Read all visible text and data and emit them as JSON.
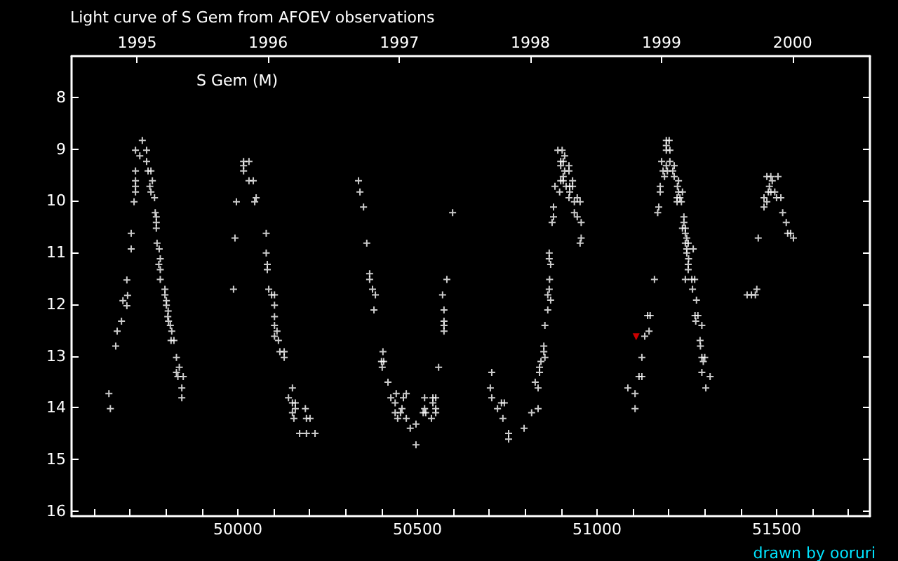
{
  "chart_data": {
    "type": "scatter",
    "title": "Light curve of S Gem from AFOEV observations",
    "annotations": [
      "S Gem (M)",
      "drawn by ooruri"
    ],
    "xlim": [
      49537,
      51760
    ],
    "xticks": [
      {
        "value": 49600,
        "label": null
      },
      {
        "value": 49700,
        "label": null
      },
      {
        "value": 49800,
        "label": null
      },
      {
        "value": 49900,
        "label": null
      },
      50000,
      {
        "value": 50100,
        "label": null
      },
      {
        "value": 50200,
        "label": null
      },
      {
        "value": 50300,
        "label": null
      },
      {
        "value": 50400,
        "label": null
      },
      50500,
      {
        "value": 50600,
        "label": null
      },
      {
        "value": 50700,
        "label": null
      },
      {
        "value": 50800,
        "label": null
      },
      {
        "value": 50900,
        "label": null
      },
      51000,
      {
        "value": 51100,
        "label": null
      },
      {
        "value": 51200,
        "label": null
      },
      {
        "value": 51300,
        "label": null
      },
      {
        "value": 51400,
        "label": null
      },
      51500,
      {
        "value": 51600,
        "label": null
      },
      {
        "value": 51700,
        "label": null
      }
    ],
    "x2lim": [
      1994.5,
      2000.59
    ],
    "x2ticks": [
      1995,
      1996,
      1997,
      1998,
      1999,
      2000
    ],
    "ylim": [
      16.1,
      7.2
    ],
    "yticks": [
      8,
      9,
      10,
      11,
      12,
      13,
      14,
      15,
      16
    ],
    "grid": false,
    "series": [
      {
        "color": "#ffffff",
        "marker": "cross",
        "x": [
          49641,
          49645,
          49660,
          49664,
          49676,
          49680,
          49691,
          49693,
          49691,
          49703,
          49703,
          49711,
          49715,
          49715,
          49715,
          49715,
          49715,
          49727,
          49734,
          49746,
          49746,
          49750,
          49758,
          49755,
          49758,
          49762,
          49768,
          49770,
          49773,
          49773,
          49773,
          49775,
          49781,
          49784,
          49780,
          49784,
          49784,
          49797,
          49797,
          49801,
          49801,
          49806,
          49805,
          49807,
          49812,
          49816,
          49814,
          49822,
          49829,
          49837,
          49829,
          49833,
          49848,
          49844,
          49844,
          49988,
          49992,
          49996,
          50016,
          50016,
          50016,
          50031,
          50031,
          50043,
          50047,
          50051,
          50079,
          50079,
          50082,
          50082,
          50086,
          50094,
          50102,
          50102,
          50102,
          50102,
          50109,
          50102,
          50113,
          50117,
          50129,
          50129,
          50152,
          50141,
          50152,
          50160,
          50152,
          50156,
          50160,
          50188,
          50191,
          50201,
          50172,
          50191,
          50215,
          50336,
          50340,
          50350,
          50359,
          50367,
          50367,
          50375,
          50383,
          50379,
          50404,
          50400,
          50406,
          50402,
          50418,
          50426,
          50441,
          50438,
          50461,
          50469,
          50457,
          50453,
          50438,
          50445,
          50469,
          50480,
          50496,
          50496,
          50520,
          50520,
          50516,
          50523,
          50543,
          50551,
          50543,
          50551,
          50551,
          50539,
          50559,
          50574,
          50574,
          50574,
          50574,
          50570,
          50582,
          50598,
          50707,
          50703,
          50707,
          50723,
          50734,
          50742,
          50738,
          50754,
          50754,
          50797,
          50818,
          50836,
          50828,
          50836,
          50840,
          50840,
          50844,
          50852,
          50852,
          50855,
          50855,
          50863,
          50871,
          50863,
          50867,
          50868,
          50871,
          50867,
          50867,
          50875,
          50879,
          50879,
          50883,
          50896,
          50891,
          50903,
          50910,
          50899,
          50899,
          50906,
          50910,
          50922,
          50922,
          50906,
          50899,
          50906,
          50914,
          50924,
          50932,
          50932,
          50924,
          50922,
          50945,
          50937,
          50953,
          50937,
          50945,
          50956,
          50956,
          50953,
          51086,
          51106,
          51106,
          51117,
          51125,
          51125,
          51133,
          51145,
          51141,
          51148,
          51160,
          51169,
          51172,
          51176,
          51176,
          51180,
          51184,
          51188,
          51193,
          51193,
          51193,
          51201,
          51193,
          51203,
          51196,
          51203,
          51211,
          51215,
          51215,
          51227,
          51224,
          51227,
          51238,
          51223,
          51231,
          51223,
          51235,
          51242,
          51242,
          51238,
          51246,
          51246,
          51250,
          51246,
          51254,
          51250,
          51268,
          51250,
          51255,
          51254,
          51254,
          51246,
          51264,
          51272,
          51266,
          51277,
          51273,
          51281,
          51275,
          51292,
          51287,
          51288,
          51292,
          51300,
          51296,
          51292,
          51315,
          51303,
          51418,
          51430,
          51441,
          51445,
          51449,
          51465,
          51465,
          51473,
          51477,
          51484,
          51495,
          51480,
          51488,
          51473,
          51484,
          51504,
          51500,
          51512,
          51517,
          51527,
          51531,
          51539,
          51547
        ],
        "values": [
          13.73,
          14.02,
          12.81,
          12.52,
          12.33,
          11.93,
          12.03,
          11.83,
          11.53,
          10.63,
          10.93,
          10.02,
          9.83,
          9.72,
          9.61,
          9.42,
          9.02,
          9.13,
          8.83,
          9.24,
          9.02,
          9.42,
          9.42,
          9.72,
          9.83,
          9.61,
          9.94,
          10.23,
          10.31,
          10.42,
          10.53,
          10.82,
          10.93,
          11.12,
          11.23,
          11.33,
          11.52,
          11.71,
          11.82,
          11.93,
          12.02,
          12.13,
          12.24,
          12.33,
          12.41,
          12.52,
          12.7,
          12.7,
          13.03,
          13.22,
          13.32,
          13.4,
          13.4,
          13.62,
          13.81,
          11.71,
          10.72,
          10.02,
          9.24,
          9.32,
          9.42,
          9.24,
          9.61,
          9.61,
          10.02,
          9.94,
          10.63,
          11.01,
          11.23,
          11.33,
          11.71,
          11.82,
          11.82,
          12.02,
          12.24,
          12.41,
          12.52,
          12.62,
          12.7,
          12.92,
          12.92,
          13.03,
          13.62,
          13.81,
          13.91,
          13.91,
          14.1,
          14.21,
          14.02,
          14.02,
          14.21,
          14.21,
          14.5,
          14.5,
          14.5,
          9.61,
          9.83,
          10.12,
          10.82,
          11.41,
          11.52,
          11.71,
          11.82,
          12.11,
          12.92,
          13.11,
          13.11,
          13.22,
          13.51,
          13.81,
          13.73,
          13.91,
          13.81,
          13.73,
          14.02,
          14.1,
          14.1,
          14.21,
          14.21,
          14.4,
          14.32,
          14.72,
          13.81,
          14.02,
          14.1,
          14.1,
          13.81,
          13.81,
          13.91,
          14.02,
          14.1,
          14.21,
          13.22,
          12.52,
          12.41,
          12.33,
          12.11,
          11.82,
          11.52,
          10.23,
          13.32,
          13.62,
          13.81,
          14.02,
          13.91,
          13.91,
          14.21,
          14.5,
          14.61,
          14.4,
          14.1,
          14.02,
          13.51,
          13.62,
          13.32,
          13.22,
          13.11,
          12.81,
          12.92,
          13.03,
          12.41,
          12.11,
          11.92,
          11.82,
          11.71,
          11.52,
          11.23,
          11.12,
          11.01,
          10.42,
          10.31,
          10.12,
          9.72,
          9.83,
          9.02,
          9.02,
          9.13,
          9.24,
          9.32,
          9.24,
          9.42,
          9.42,
          9.32,
          9.53,
          9.61,
          9.61,
          9.72,
          9.72,
          9.61,
          9.72,
          9.83,
          9.94,
          9.94,
          10.02,
          10.02,
          10.23,
          10.31,
          10.42,
          10.72,
          10.82,
          13.62,
          13.73,
          14.02,
          13.4,
          13.4,
          13.03,
          12.62,
          12.52,
          12.22,
          12.22,
          11.52,
          10.23,
          10.12,
          9.83,
          9.72,
          9.24,
          9.42,
          9.53,
          9.32,
          9.02,
          8.83,
          8.83,
          8.93,
          9.02,
          9.42,
          9.24,
          9.42,
          9.32,
          9.53,
          9.61,
          9.72,
          9.83,
          9.83,
          9.94,
          9.94,
          10.02,
          10.02,
          10.31,
          10.42,
          10.53,
          10.53,
          10.63,
          10.72,
          10.82,
          10.82,
          10.93,
          10.93,
          11.01,
          11.12,
          11.23,
          11.33,
          11.52,
          11.52,
          11.52,
          11.71,
          11.92,
          12.22,
          12.22,
          12.33,
          12.41,
          12.7,
          12.81,
          13.03,
          13.03,
          13.11,
          13.32,
          13.4,
          13.62,
          11.82,
          11.82,
          11.82,
          11.71,
          10.72,
          10.12,
          9.94,
          10.02,
          9.83,
          9.83,
          9.83,
          9.72,
          9.61,
          9.53,
          9.53,
          9.53,
          9.94,
          9.94,
          10.23,
          10.42,
          10.63,
          10.63,
          10.72
        ]
      },
      {
        "color": "#ff0000",
        "marker": "triangle",
        "x": [
          51109
        ],
        "values": [
          12.63
        ]
      }
    ]
  }
}
